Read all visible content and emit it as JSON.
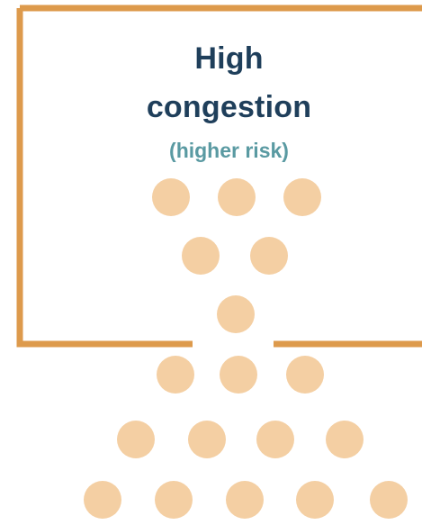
{
  "heading": {
    "line1": "High",
    "line2": "congestion",
    "subtitle": "(higher risk)"
  },
  "colors": {
    "border": "#dd9a4c",
    "dot": "#f4cfa3",
    "title": "#1f3f5b",
    "subtitle": "#5a9aa2"
  },
  "dots": {
    "inside_rows": [
      3,
      2,
      1
    ],
    "outside_rows": [
      3,
      4,
      5
    ]
  }
}
